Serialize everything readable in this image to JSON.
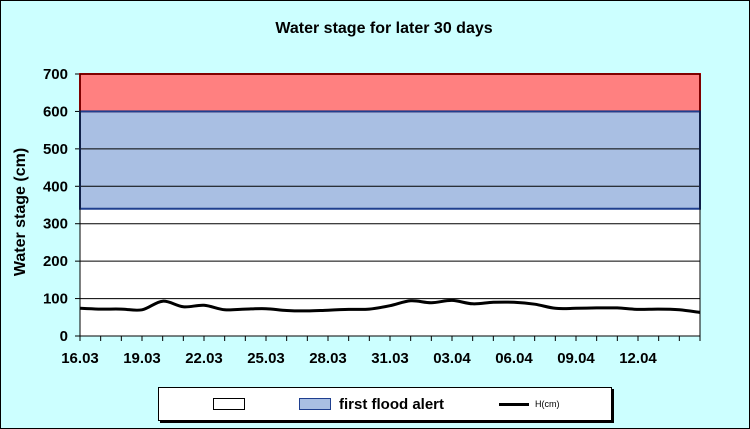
{
  "chart_data": {
    "type": "line",
    "title": "Water stage for later 30 days",
    "ylabel": "Water stage (cm)",
    "xlabel": "",
    "ylim": [
      0,
      700
    ],
    "yticks": [
      0,
      100,
      200,
      300,
      400,
      500,
      600,
      700
    ],
    "xlim": [
      "16.03",
      "15.04"
    ],
    "xtick_labels": [
      "16.03",
      "19.03",
      "22.03",
      "25.03",
      "28.03",
      "31.03",
      "03.04",
      "06.04",
      "09.04",
      "12.04"
    ],
    "grid": true,
    "legend_position": "bottom",
    "bands": [
      {
        "name": "",
        "from": 600,
        "to": 700,
        "color": "#ff8080",
        "edge": "#ff0000"
      },
      {
        "name": "first flood alert",
        "from": 340,
        "to": 600,
        "color": "#a9bfe3",
        "edge": "#1f3f8f"
      }
    ],
    "series": [
      {
        "name": "H(cm)",
        "color": "#000000",
        "x": [
          "16.03",
          "17.03",
          "18.03",
          "19.03",
          "20.03",
          "21.03",
          "22.03",
          "23.03",
          "24.03",
          "25.03",
          "26.03",
          "27.03",
          "28.03",
          "29.03",
          "30.03",
          "31.03",
          "01.04",
          "02.04",
          "03.04",
          "04.04",
          "05.04",
          "06.04",
          "07.04",
          "08.04",
          "09.04",
          "10.04",
          "11.04",
          "12.04",
          "13.04",
          "14.04",
          "15.04"
        ],
        "values": [
          74,
          72,
          72,
          70,
          93,
          78,
          82,
          70,
          72,
          73,
          68,
          67,
          69,
          71,
          72,
          81,
          94,
          89,
          95,
          86,
          90,
          90,
          85,
          74,
          74,
          75,
          75,
          71,
          72,
          70,
          63
        ]
      }
    ]
  },
  "legend": {
    "items": [
      {
        "label": "",
        "color": "#ffffff"
      },
      {
        "label": "first flood alert",
        "color": "#a9bfe3"
      },
      {
        "label": "H(cm)",
        "color": "#000000"
      }
    ]
  }
}
